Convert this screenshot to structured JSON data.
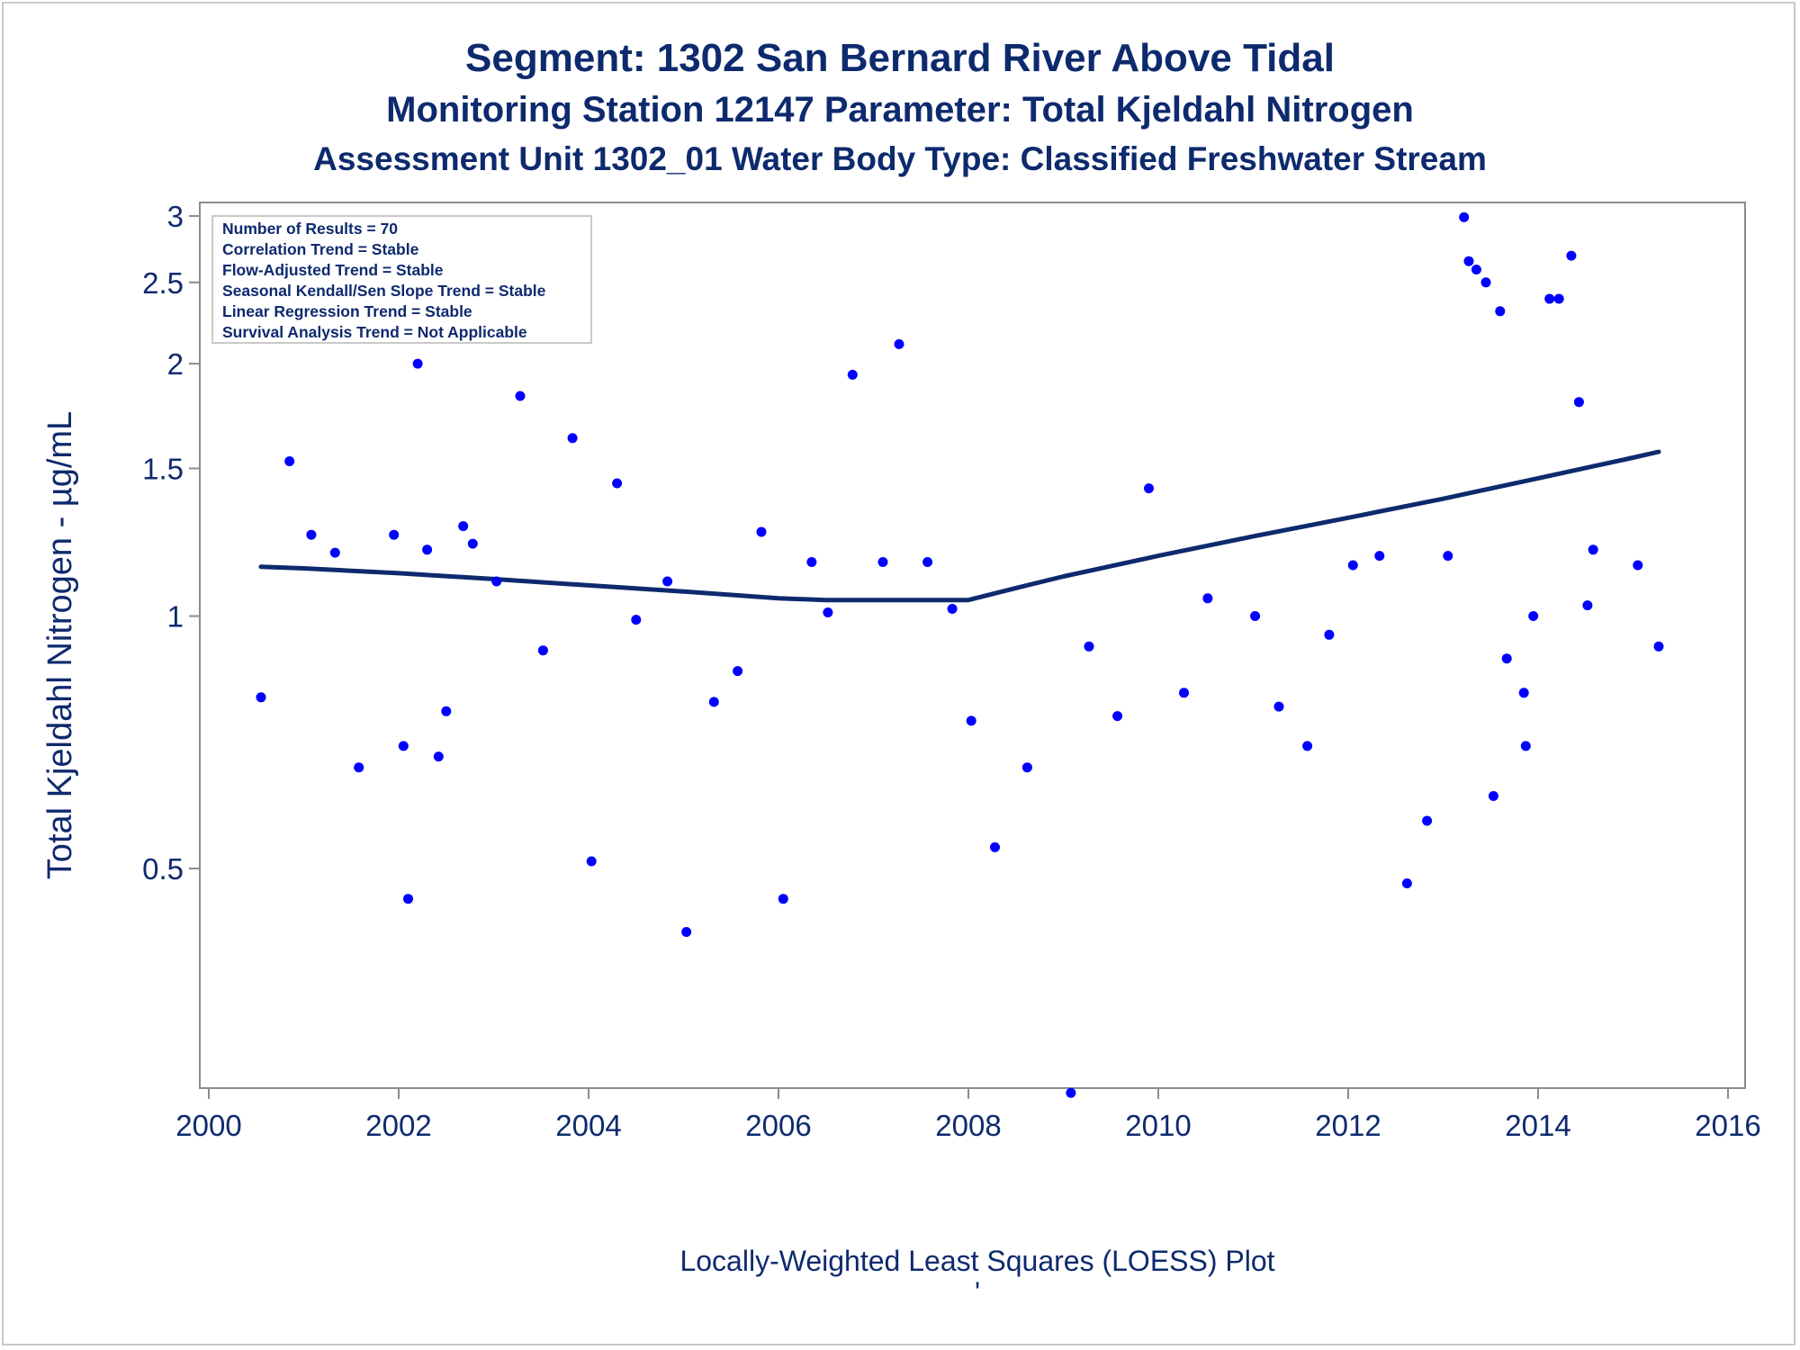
{
  "titles": {
    "line1": "Segment: 1302  San Bernard River Above Tidal",
    "line2": "Monitoring Station 12147 Parameter: Total Kjeldahl Nitrogen",
    "line3": "Assessment Unit 1302_01   Water Body Type: Classified Freshwater Stream"
  },
  "footer": {
    "caption": "Locally-Weighted Least Squares (LOESS) Plot",
    "tick_mark": "'"
  },
  "legend": {
    "lines": [
      "Number of Results = 70",
      "Correlation Trend = Stable",
      "Flow-Adjusted Trend = Stable",
      "Seasonal Kendall/Sen Slope Trend = Stable",
      "Linear Regression Trend = Stable",
      "Survival Analysis Trend = Not Applicable"
    ]
  },
  "colors": {
    "points": "#0000ff",
    "loess": "#0e2a6e",
    "text": "#0e2a6e",
    "axis": "#8c8c8c"
  },
  "chart_data": {
    "type": "scatter",
    "title": "Segment: 1302  San Bernard River Above Tidal",
    "xlabel": "",
    "ylabel": "Total Kjeldahl Nitrogen -  µg/mL",
    "y_scale": "log",
    "xlim": [
      2000,
      2016
    ],
    "ylim": [
      0.26,
      3.07
    ],
    "x_ticks": [
      2000,
      2002,
      2004,
      2006,
      2008,
      2010,
      2012,
      2014,
      2016
    ],
    "y_ticks": [
      0.5,
      1,
      1.5,
      2,
      2.5,
      3
    ],
    "grid": false,
    "legend_position": "top-left",
    "points": [
      [
        2000.55,
        0.8
      ],
      [
        2000.85,
        1.53
      ],
      [
        2001.08,
        1.25
      ],
      [
        2001.33,
        1.19
      ],
      [
        2001.58,
        0.66
      ],
      [
        2001.95,
        1.25
      ],
      [
        2002.05,
        0.7
      ],
      [
        2002.1,
        0.46
      ],
      [
        2002.2,
        2.0
      ],
      [
        2002.3,
        1.2
      ],
      [
        2002.42,
        0.68
      ],
      [
        2002.5,
        0.77
      ],
      [
        2002.68,
        1.28
      ],
      [
        2002.78,
        1.22
      ],
      [
        2003.03,
        1.1
      ],
      [
        2003.28,
        1.83
      ],
      [
        2003.52,
        0.91
      ],
      [
        2003.83,
        1.63
      ],
      [
        2004.03,
        0.51
      ],
      [
        2004.3,
        1.44
      ],
      [
        2004.5,
        0.99
      ],
      [
        2004.83,
        1.1
      ],
      [
        2005.03,
        0.42
      ],
      [
        2005.32,
        0.79
      ],
      [
        2005.57,
        0.86
      ],
      [
        2005.82,
        1.26
      ],
      [
        2006.05,
        0.46
      ],
      [
        2006.35,
        1.16
      ],
      [
        2006.52,
        1.01
      ],
      [
        2006.78,
        1.94
      ],
      [
        2007.1,
        1.16
      ],
      [
        2007.27,
        2.11
      ],
      [
        2007.57,
        1.16
      ],
      [
        2007.83,
        1.02
      ],
      [
        2008.03,
        0.75
      ],
      [
        2008.28,
        0.53
      ],
      [
        2008.62,
        0.66
      ],
      [
        2009.08,
        0.27
      ],
      [
        2009.27,
        0.92
      ],
      [
        2009.57,
        0.76
      ],
      [
        2009.9,
        1.42
      ],
      [
        2010.27,
        0.81
      ],
      [
        2010.52,
        1.05
      ],
      [
        2011.02,
        1.0
      ],
      [
        2011.27,
        0.78
      ],
      [
        2011.57,
        0.7
      ],
      [
        2011.8,
        0.95
      ],
      [
        2012.05,
        1.15
      ],
      [
        2012.33,
        1.18
      ],
      [
        2012.62,
        0.48
      ],
      [
        2012.83,
        0.57
      ],
      [
        2013.05,
        1.18
      ],
      [
        2013.22,
        2.99
      ],
      [
        2013.27,
        2.65
      ],
      [
        2013.35,
        2.59
      ],
      [
        2013.45,
        2.5
      ],
      [
        2013.53,
        0.61
      ],
      [
        2013.6,
        2.31
      ],
      [
        2013.67,
        0.89
      ],
      [
        2013.85,
        0.81
      ],
      [
        2013.87,
        0.7
      ],
      [
        2013.95,
        1.0
      ],
      [
        2014.12,
        2.39
      ],
      [
        2014.22,
        2.39
      ],
      [
        2014.35,
        2.69
      ],
      [
        2014.43,
        1.8
      ],
      [
        2014.52,
        1.03
      ],
      [
        2014.58,
        1.2
      ],
      [
        2015.05,
        1.15
      ],
      [
        2015.27,
        0.92
      ]
    ],
    "loess": [
      [
        2000.55,
        1.145
      ],
      [
        2001.0,
        1.14
      ],
      [
        2002.0,
        1.125
      ],
      [
        2003.0,
        1.107
      ],
      [
        2004.0,
        1.088
      ],
      [
        2005.0,
        1.07
      ],
      [
        2006.0,
        1.05
      ],
      [
        2006.5,
        1.045
      ],
      [
        2007.0,
        1.045
      ],
      [
        2007.5,
        1.045
      ],
      [
        2008.0,
        1.045
      ],
      [
        2008.5,
        1.08
      ],
      [
        2009.0,
        1.115
      ],
      [
        2010.0,
        1.18
      ],
      [
        2011.0,
        1.245
      ],
      [
        2012.0,
        1.31
      ],
      [
        2013.0,
        1.38
      ],
      [
        2014.0,
        1.46
      ],
      [
        2015.0,
        1.545
      ],
      [
        2015.27,
        1.57
      ]
    ]
  }
}
